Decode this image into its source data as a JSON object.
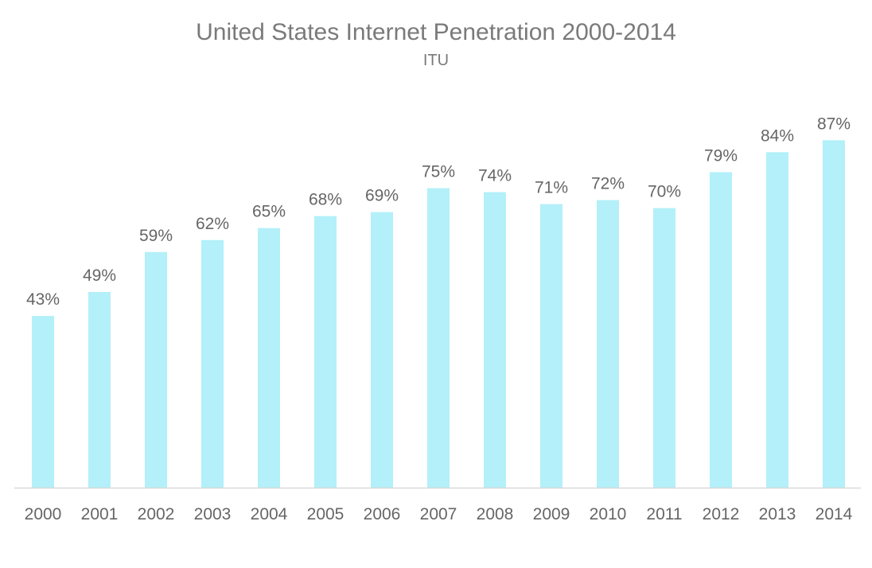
{
  "chart_data": {
    "type": "bar",
    "title": "United States Internet Penetration 2000-2014",
    "subtitle": "ITU",
    "xlabel": "",
    "ylabel": "",
    "categories": [
      "2000",
      "2001",
      "2002",
      "2003",
      "2004",
      "2005",
      "2006",
      "2007",
      "2008",
      "2009",
      "2010",
      "2011",
      "2012",
      "2013",
      "2014"
    ],
    "values": [
      43,
      49,
      59,
      62,
      65,
      68,
      69,
      75,
      74,
      71,
      72,
      70,
      79,
      84,
      87
    ],
    "value_labels": [
      "43%",
      "49%",
      "59%",
      "62%",
      "65%",
      "68%",
      "69%",
      "75%",
      "74%",
      "71%",
      "72%",
      "70%",
      "79%",
      "84%",
      "87%"
    ],
    "ylim": [
      0,
      100
    ],
    "grid": false,
    "legend": "none",
    "bar_color": "#b3f0f9"
  }
}
